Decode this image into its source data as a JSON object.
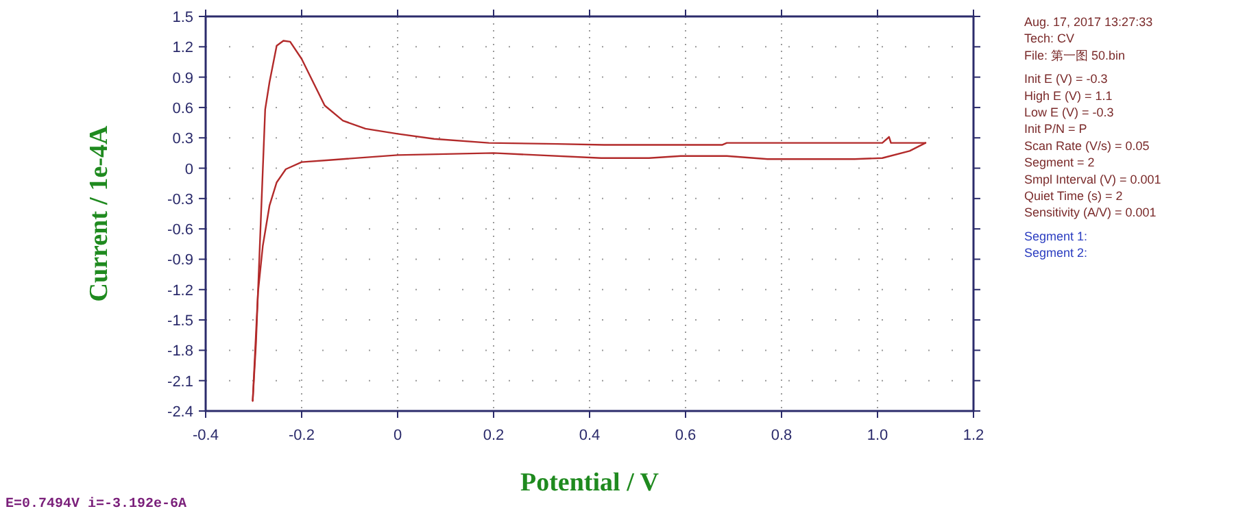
{
  "chart_data": {
    "type": "line",
    "xlabel": "Potential / V",
    "ylabel": "Current / 1e-4A",
    "xlim": [
      -0.4,
      1.2
    ],
    "ylim": [
      -2.4,
      1.5
    ],
    "xticks": [
      -0.4,
      -0.2,
      0,
      0.2,
      0.4,
      0.6,
      0.8,
      {
        "value": 1,
        "label": "1.0"
      },
      1.2
    ],
    "yticks": [
      1.5,
      1.2,
      0.9,
      0.6,
      0.3,
      0,
      -0.3,
      -0.6,
      -0.9,
      -1.2,
      -1.5,
      -1.8,
      -2.1,
      -2.4
    ],
    "grid": true,
    "marker": "none",
    "line_style": "solid",
    "series": [
      {
        "color": "#b22a2a",
        "x": [
          -0.302,
          -0.291,
          -0.276,
          -0.267,
          -0.252,
          -0.238,
          -0.224,
          -0.2,
          -0.176,
          -0.152,
          -0.114,
          -0.067,
          0,
          0.076,
          0.19,
          0.333,
          0.43,
          0.676,
          0.686,
          1.01,
          1.022,
          1.024,
          1.028,
          1.1
        ],
        "values": [
          -2.3,
          -1.23,
          0.58,
          0.85,
          1.21,
          1.26,
          1.25,
          1.08,
          0.85,
          0.62,
          0.47,
          0.39,
          0.34,
          0.29,
          0.25,
          0.24,
          0.23,
          0.23,
          0.25,
          0.25,
          0.3,
          0.31,
          0.25,
          0.25
        ]
      },
      {
        "color": "#b22a2a",
        "x": [
          1.1,
          1.067,
          1.01,
          0.952,
          0.771,
          0.686,
          0.59,
          0.524,
          0.424,
          0.2,
          0,
          -0.143,
          -0.2,
          -0.233,
          -0.252,
          -0.267,
          -0.281,
          -0.291,
          -0.295,
          -0.302
        ],
        "values": [
          0.25,
          0.17,
          0.1,
          0.09,
          0.09,
          0.12,
          0.12,
          0.1,
          0.1,
          0.15,
          0.13,
          0.08,
          0.06,
          -0.01,
          -0.14,
          -0.37,
          -0.77,
          -1.23,
          -1.72,
          -2.3
        ]
      }
    ],
    "annotations": [
      "Aug. 17, 2017   13:27:33",
      "Tech: CV",
      "File: 第一图  50.bin",
      "Init E (V) = -0.3",
      "High E (V) = 1.1",
      "Low E (V) = -0.3",
      "Init P/N = P",
      "Scan Rate (V/s) = 0.05",
      "Segment = 2",
      "Smpl Interval (V) = 0.001",
      "Quiet Time (s) = 2",
      "Sensitivity (A/V) = 0.001",
      "Segment 1:",
      "Segment 2:",
      "E=0.7494V  i=-3.192e-6A"
    ]
  }
}
